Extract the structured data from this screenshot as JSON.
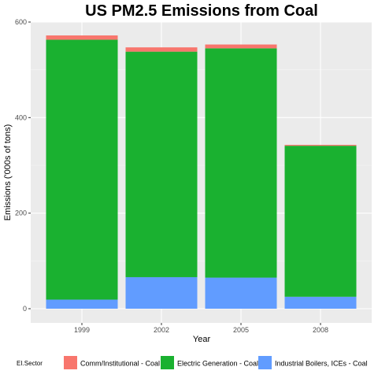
{
  "chart_data": {
    "type": "bar",
    "stacked": true,
    "title": "US PM2.5 Emissions from Coal",
    "xlabel": "Year",
    "ylabel": "Emissions ('000s of tons)",
    "categories": [
      "1999",
      "2002",
      "2005",
      "2008"
    ],
    "ylim": [
      0,
      600
    ],
    "yticks": [
      0,
      200,
      400,
      600
    ],
    "grid": true,
    "legend": {
      "title": "EI.Sector",
      "position": "bottom"
    },
    "series": [
      {
        "name": "Industrial Boilers, ICEs - Coal",
        "color": "#619CFF",
        "values": [
          19,
          66,
          65,
          25
        ]
      },
      {
        "name": "Electric Generation - Coal",
        "color": "#1AB130",
        "values": [
          544,
          472,
          480,
          316
        ]
      },
      {
        "name": "Comm/Institutional - Coal",
        "color": "#F8766D",
        "values": [
          9,
          9,
          8,
          2
        ]
      }
    ],
    "legend_order": [
      "Comm/Institutional - Coal",
      "Electric Generation - Coal",
      "Industrial Boilers, ICEs - Coal"
    ]
  }
}
